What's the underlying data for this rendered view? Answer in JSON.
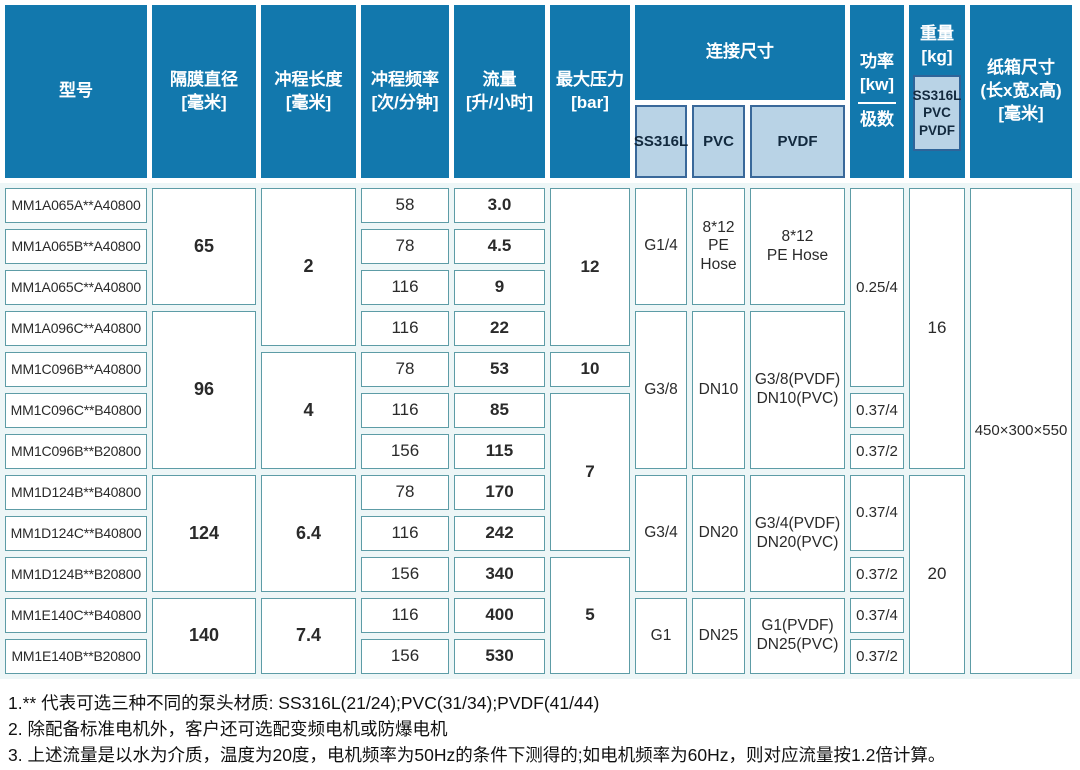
{
  "theme": {
    "header_blue": "#1278ad",
    "subheader_blue": "#b9d3e6",
    "cell_border_teal": "#5d9ca6",
    "body_band_tint": "#edf6f7"
  },
  "table": {
    "columns": {
      "model": {
        "title": "型号"
      },
      "diaphragm": {
        "title": "隔膜直径",
        "unit": "[毫米]"
      },
      "stroke_length": {
        "title": "冲程长度",
        "unit": "[毫米]"
      },
      "stroke_frequency": {
        "title": "冲程频率",
        "unit": "[次/分钟]"
      },
      "flow": {
        "title": "流量",
        "unit": "[升/小时]"
      },
      "max_pressure": {
        "title": "最大压力",
        "unit": "[bar]"
      },
      "connection": {
        "title": "连接尺寸",
        "sub": [
          "SS316L",
          "PVC",
          "PVDF"
        ]
      },
      "power": {
        "title": "功率",
        "unit": "[kw]",
        "sub": "极数"
      },
      "weight": {
        "title": "重量",
        "unit": "[kg]",
        "sub": "SS316L\nPVC\nPVDF"
      },
      "carton": {
        "title": "纸箱尺寸",
        "subtitle": "(长x宽x高)",
        "unit": "[毫米]"
      }
    },
    "models": [
      "MM1A065A**A40800",
      "MM1A065B**A40800",
      "MM1A065C**A40800",
      "MM1A096C**A40800",
      "MM1C096B**A40800",
      "MM1C096C**B40800",
      "MM1C096B**B20800",
      "MM1D124B**B40800",
      "MM1D124C**B40800",
      "MM1D124B**B20800",
      "MM1E140C**B40800",
      "MM1E140B**B20800"
    ],
    "diaphragm_groups": [
      {
        "value": "65",
        "span": 3
      },
      {
        "value": "96",
        "span": 4
      },
      {
        "value": "124",
        "span": 3
      },
      {
        "value": "140",
        "span": 2
      }
    ],
    "stroke_length_groups": [
      {
        "value": "2",
        "span": 4
      },
      {
        "value": "4",
        "span": 3
      },
      {
        "value": "6.4",
        "span": 3
      },
      {
        "value": "7.4",
        "span": 2
      }
    ],
    "frequencies": [
      "58",
      "78",
      "116",
      "116",
      "78",
      "116",
      "156",
      "78",
      "116",
      "156",
      "116",
      "156"
    ],
    "flows": [
      "3.0",
      "4.5",
      "9",
      "22",
      "53",
      "85",
      "115",
      "170",
      "242",
      "340",
      "400",
      "530"
    ],
    "pressure_groups": [
      {
        "value": "12",
        "span": 4
      },
      {
        "value": "10",
        "span": 1
      },
      {
        "value": "7",
        "span": 4
      },
      {
        "value": "5",
        "span": 3
      }
    ],
    "connection_groups": [
      {
        "span": 3,
        "ss316l": "G1/4",
        "pvc": "8*12\nPE\nHose",
        "pvdf": "8*12\nPE Hose"
      },
      {
        "span": 4,
        "ss316l": "G3/8",
        "pvc": "DN10",
        "pvdf": "G3/8(PVDF)\nDN10(PVC)"
      },
      {
        "span": 3,
        "ss316l": "G3/4",
        "pvc": "DN20",
        "pvdf": "G3/4(PVDF)\nDN20(PVC)"
      },
      {
        "span": 2,
        "ss316l": "G1",
        "pvc": "DN25",
        "pvdf": "G1(PVDF)\nDN25(PVC)"
      }
    ],
    "power_groups": [
      {
        "value": "0.25/4",
        "span": 5
      },
      {
        "value": "0.37/4",
        "span": 1
      },
      {
        "value": "0.37/2",
        "span": 1
      },
      {
        "value": "0.37/4",
        "span": 2
      },
      {
        "value": "0.37/2",
        "span": 1
      },
      {
        "value": "0.37/4",
        "span": 1
      },
      {
        "value": "0.37/2",
        "span": 1
      }
    ],
    "weight_groups": [
      {
        "value": "16",
        "span": 7
      },
      {
        "value": "20",
        "span": 5
      }
    ],
    "carton_groups": [
      {
        "value": "450×300×550",
        "span": 12
      }
    ]
  },
  "notes": [
    "1.** 代表可选三种不同的泵头材质: SS316L(21/24);PVC(31/34);PVDF(41/44)",
    "2. 除配备标准电机外，客户还可选配变频电机或防爆电机",
    "3. 上述流量是以水为介质，温度为20度，电机频率为50Hz的条件下测得的;如电机频率为60Hz，则对应流量按1.2倍计算。"
  ]
}
